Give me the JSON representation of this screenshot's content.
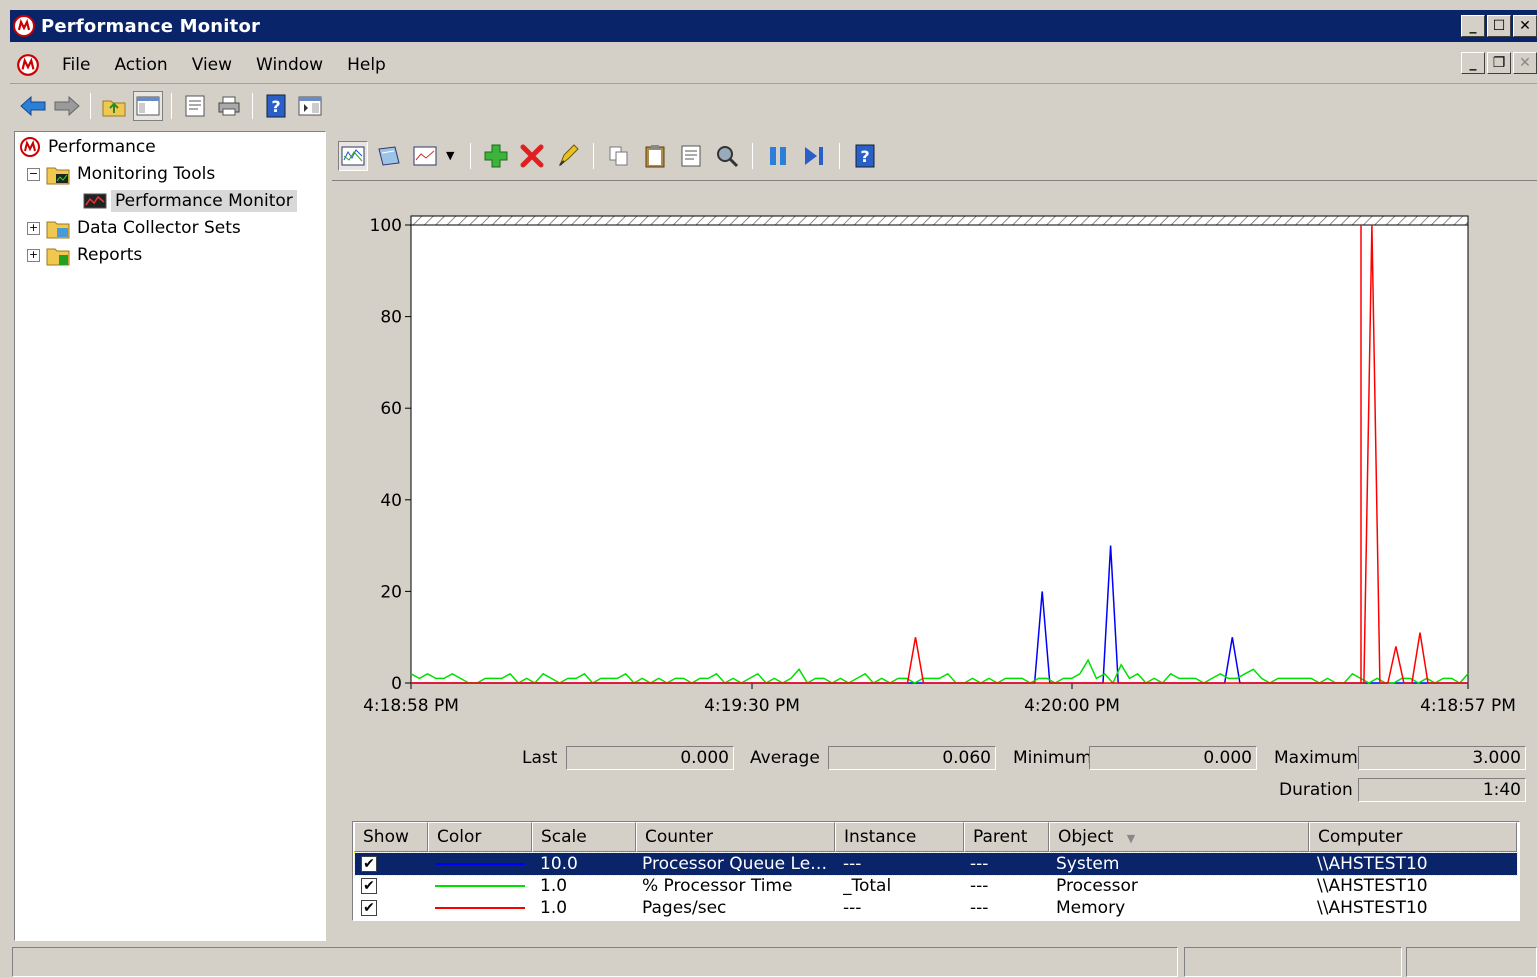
{
  "window": {
    "title": "Performance Monitor",
    "controls": [
      "minimize-icon",
      "maximize-icon",
      "close-icon"
    ]
  },
  "menu": {
    "items": [
      "File",
      "Action",
      "View",
      "Window",
      "Help"
    ]
  },
  "toolbar": {
    "icons": [
      "back-icon",
      "forward-icon",
      "up-folder-icon",
      "show-hide-console-tree-icon",
      "properties-icon",
      "print-icon",
      "help-icon",
      "show-hide-action-pane-icon"
    ]
  },
  "tree": {
    "items": [
      {
        "label": "Performance",
        "icon": "performance-icon"
      },
      {
        "label": "Monitoring Tools",
        "icon": "folder-icon",
        "expanded": true
      },
      {
        "label": "Performance Monitor",
        "icon": "perfmon-graph-icon",
        "selected": true
      },
      {
        "label": "Data Collector Sets",
        "icon": "folder-icon",
        "expanded": false
      },
      {
        "label": "Reports",
        "icon": "folder-icon",
        "expanded": false
      }
    ]
  },
  "pm_toolbar": {
    "icons": [
      "view-current-activity-icon",
      "view-log-data-icon",
      "change-graph-type-icon",
      "dropdown-arrow-icon",
      "add-counter-icon",
      "delete-counter-icon",
      "highlight-icon",
      "copy-properties-icon",
      "paste-counter-list-icon",
      "properties-icon",
      "zoom-icon",
      "freeze-display-icon",
      "update-data-icon",
      "help-icon"
    ]
  },
  "chart_data": {
    "type": "line",
    "ylim": [
      0,
      100
    ],
    "yticks": [
      "0",
      "20",
      "40",
      "60",
      "80",
      "100"
    ],
    "xtick_labels": [
      "4:18:58 PM",
      "4:19:30 PM",
      "4:20:00 PM",
      "4:18:57 PM"
    ],
    "grid": false,
    "legend": "none",
    "series": [
      {
        "name": "Processor Queue Length",
        "color": "#0000ff",
        "scale": 10.0,
        "values": [
          0,
          0,
          0,
          0,
          0,
          0,
          0,
          0,
          0,
          0,
          0,
          0,
          0,
          0,
          0,
          0,
          0,
          0,
          0,
          0,
          0,
          0,
          0,
          0,
          0,
          0,
          0,
          0,
          0,
          0,
          0,
          0,
          0,
          0,
          0,
          0,
          0,
          0,
          0,
          0,
          0,
          0,
          0,
          0,
          0,
          0,
          0,
          0,
          0,
          0,
          0,
          0,
          0,
          0,
          0,
          0,
          0,
          0,
          0,
          0,
          0,
          0,
          0,
          0,
          0,
          0,
          0,
          0,
          0,
          0,
          0,
          0,
          0,
          0,
          0,
          0,
          0,
          0,
          0,
          0,
          0,
          0,
          0,
          20,
          0,
          0,
          0,
          0,
          0,
          0,
          0,
          0,
          30,
          0,
          0,
          0,
          0,
          0,
          0,
          0,
          0,
          0,
          0,
          0,
          0,
          0,
          0,
          0,
          10,
          0,
          0,
          0,
          0,
          0,
          0,
          0,
          0,
          0,
          0,
          0,
          0,
          0,
          0,
          0,
          0,
          0,
          0,
          0,
          0,
          0,
          0,
          0,
          0,
          0,
          0,
          0,
          0,
          0,
          0,
          0
        ]
      },
      {
        "name": "% Processor Time",
        "color": "#00e000",
        "scale": 1.0,
        "values": [
          2,
          1,
          2,
          1,
          1,
          2,
          1,
          0,
          0,
          1,
          1,
          1,
          2,
          0,
          1,
          0,
          2,
          1,
          0,
          1,
          1,
          2,
          0,
          1,
          1,
          1,
          2,
          0,
          1,
          0,
          1,
          0,
          1,
          1,
          0,
          1,
          1,
          2,
          0,
          1,
          0,
          1,
          2,
          0,
          1,
          0,
          1,
          3,
          0,
          1,
          1,
          0,
          1,
          0,
          1,
          2,
          0,
          1,
          0,
          1,
          1,
          0,
          1,
          1,
          1,
          2,
          0,
          0,
          1,
          0,
          1,
          0,
          1,
          1,
          1,
          0,
          1,
          1,
          0,
          1,
          1,
          2,
          5,
          1,
          2,
          0,
          4,
          1,
          2,
          0,
          1,
          0,
          2,
          1,
          1,
          1,
          0,
          1,
          2,
          1,
          1,
          2,
          3,
          1,
          0,
          1,
          1,
          1,
          1,
          1,
          0,
          1,
          0,
          0,
          2,
          1,
          0,
          1,
          0,
          0,
          1,
          1,
          0,
          1,
          0,
          1,
          1,
          0,
          2
        ]
      },
      {
        "name": "Pages/sec",
        "color": "#ff0000",
        "scale": 1.0,
        "values": [
          0,
          0,
          0,
          0,
          0,
          0,
          0,
          0,
          0,
          0,
          0,
          0,
          0,
          0,
          0,
          0,
          0,
          0,
          0,
          0,
          0,
          0,
          0,
          0,
          0,
          0,
          0,
          0,
          0,
          0,
          0,
          0,
          0,
          0,
          0,
          0,
          0,
          0,
          0,
          0,
          0,
          0,
          0,
          0,
          0,
          0,
          0,
          0,
          0,
          0,
          0,
          0,
          0,
          0,
          0,
          0,
          0,
          0,
          0,
          0,
          0,
          0,
          0,
          10,
          0,
          0,
          0,
          0,
          0,
          0,
          0,
          0,
          0,
          0,
          0,
          0,
          0,
          0,
          0,
          0,
          0,
          0,
          0,
          0,
          0,
          0,
          0,
          0,
          0,
          0,
          0,
          0,
          0,
          0,
          0,
          0,
          0,
          0,
          0,
          0,
          0,
          0,
          0,
          0,
          0,
          0,
          0,
          0,
          0,
          0,
          0,
          0,
          0,
          0,
          0,
          0,
          0,
          0,
          0,
          0,
          100,
          0,
          0,
          8,
          0,
          0,
          11,
          0,
          0,
          0,
          0,
          0,
          0
        ]
      }
    ]
  },
  "value_bar": {
    "last_label": "Last",
    "last_value": "0.000",
    "average_label": "Average",
    "average_value": "0.060",
    "minimum_label": "Minimum",
    "minimum_value": "0.000",
    "maximum_label": "Maximum",
    "maximum_value": "3.000",
    "duration_label": "Duration",
    "duration_value": "1:40"
  },
  "counter_list": {
    "headers": [
      "Show",
      "Color",
      "Scale",
      "Counter",
      "Instance",
      "Parent",
      "Object",
      "Computer"
    ],
    "rows": [
      {
        "show": "✔",
        "color": "#0000ff",
        "scale": "10.0",
        "counter": "Processor Queue Le…",
        "instance": "---",
        "parent": "---",
        "object": "System",
        "computer": "\\\\AHSTEST10"
      },
      {
        "show": "✔",
        "color": "#00e000",
        "scale": "1.0",
        "counter": "% Processor Time",
        "instance": "_Total",
        "parent": "---",
        "object": "Processor",
        "computer": "\\\\AHSTEST10"
      },
      {
        "show": "✔",
        "color": "#ff0000",
        "scale": "1.0",
        "counter": "Pages/sec",
        "instance": "---",
        "parent": "---",
        "object": "Memory",
        "computer": "\\\\AHSTEST10"
      }
    ]
  },
  "colors": {
    "titlebar": "#0a246a",
    "selection": "#0a246a",
    "chrome": "#d4d0c8"
  }
}
